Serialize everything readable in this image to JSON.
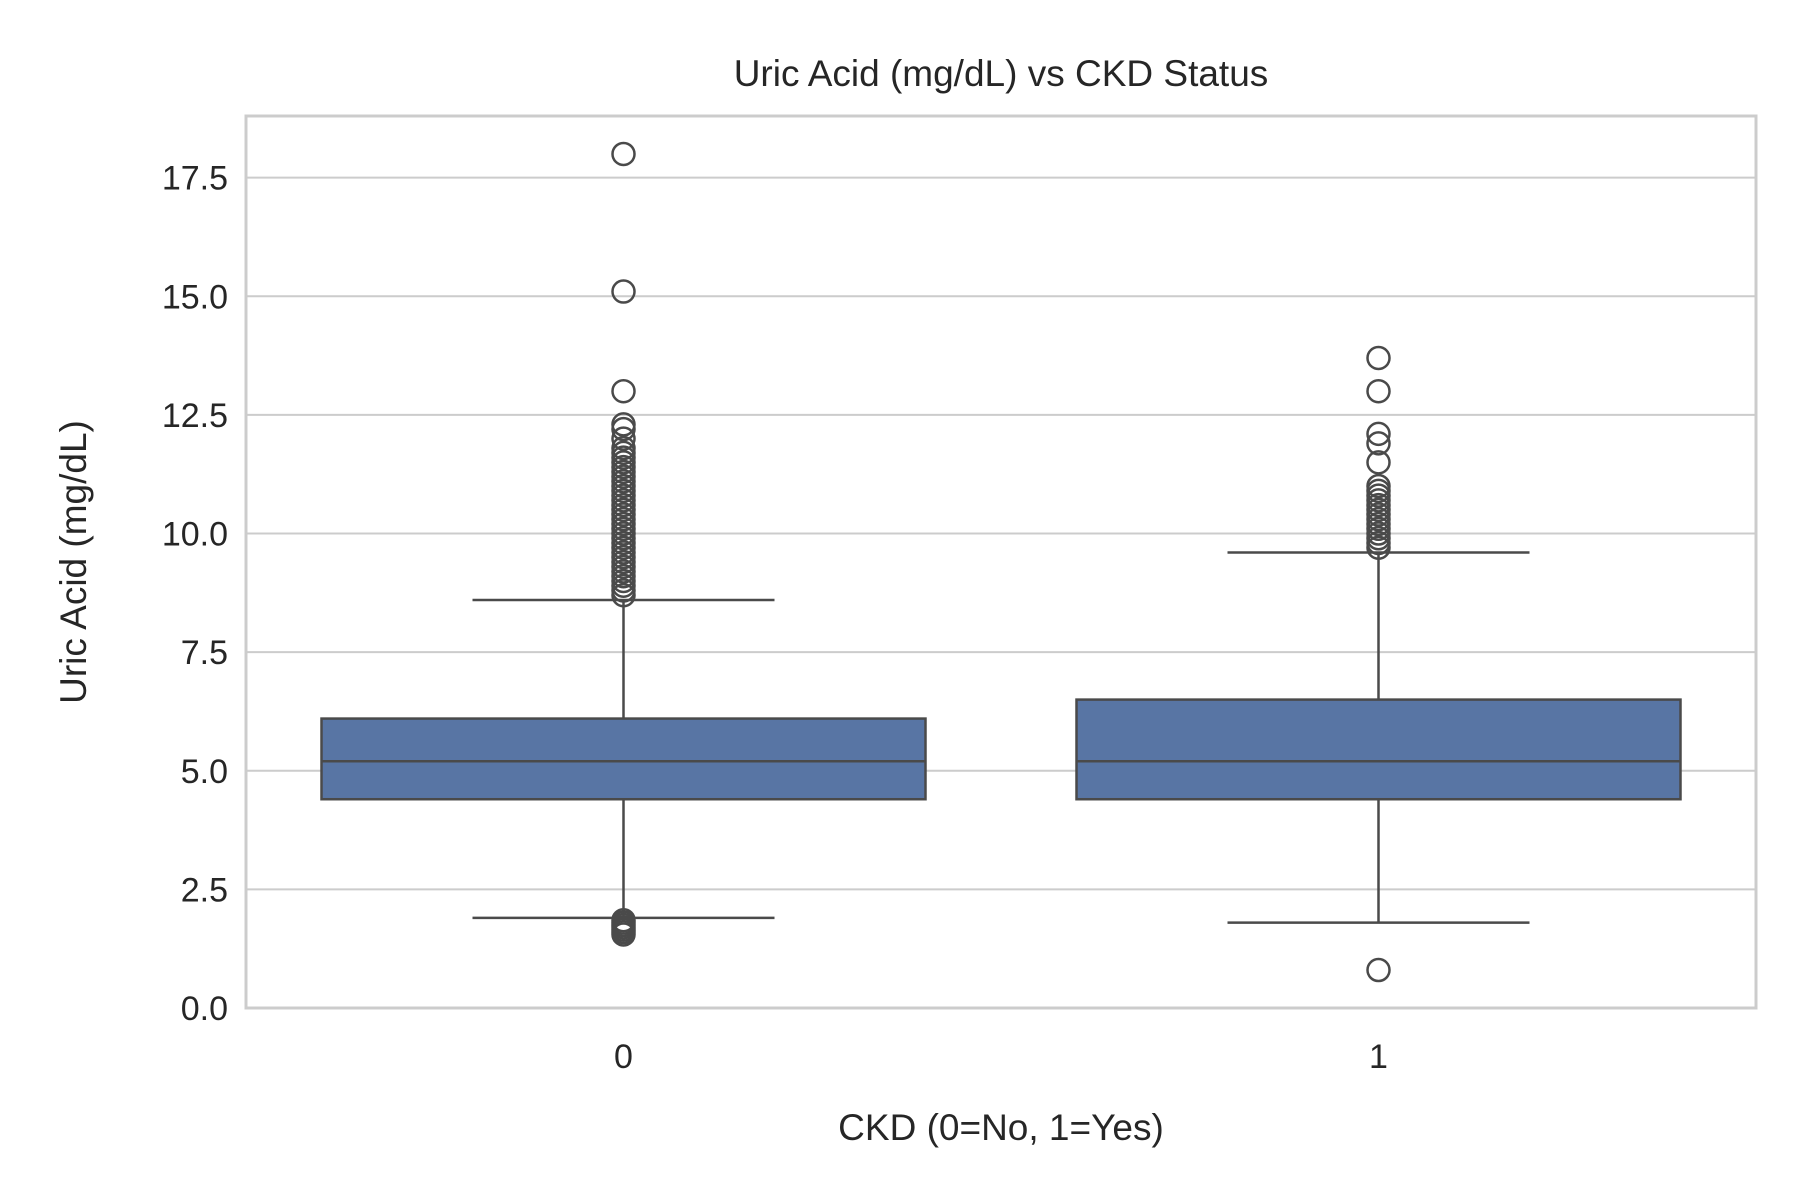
{
  "chart_data": {
    "type": "box",
    "title": "Uric Acid (mg/dL) vs CKD Status",
    "xlabel": "CKD (0=No, 1=Yes)",
    "ylabel": "Uric Acid (mg/dL)",
    "ylim": [
      0,
      18.8
    ],
    "yticks": [
      "0.0",
      "2.5",
      "5.0",
      "7.5",
      "10.0",
      "12.5",
      "15.0",
      "17.5"
    ],
    "grid": true,
    "box_color": "#5875a4",
    "line_color": "#4a4a4a",
    "categories": [
      "0",
      "1"
    ],
    "boxes": [
      {
        "category": "0",
        "whisker_low": 1.9,
        "q1": 4.4,
        "median": 5.2,
        "q3": 6.1,
        "whisker_high": 8.6,
        "outliers": [
          1.55,
          1.6,
          1.65,
          1.7,
          1.75,
          1.8,
          1.85,
          8.7,
          8.8,
          8.9,
          9.0,
          9.1,
          9.2,
          9.3,
          9.4,
          9.5,
          9.6,
          9.7,
          9.8,
          9.9,
          10.0,
          10.1,
          10.2,
          10.3,
          10.4,
          10.5,
          10.6,
          10.7,
          10.8,
          10.9,
          11.0,
          11.1,
          11.2,
          11.3,
          11.4,
          11.5,
          11.6,
          11.7,
          11.8,
          12.0,
          12.2,
          12.3,
          13.0,
          15.1,
          18.0
        ]
      },
      {
        "category": "1",
        "whisker_low": 1.8,
        "q1": 4.4,
        "median": 5.2,
        "q3": 6.5,
        "whisker_high": 9.6,
        "outliers": [
          0.8,
          9.7,
          9.8,
          9.9,
          10.0,
          10.1,
          10.2,
          10.3,
          10.4,
          10.5,
          10.6,
          10.7,
          10.8,
          10.9,
          11.0,
          11.5,
          11.9,
          12.1,
          13.0,
          13.7
        ]
      }
    ]
  }
}
